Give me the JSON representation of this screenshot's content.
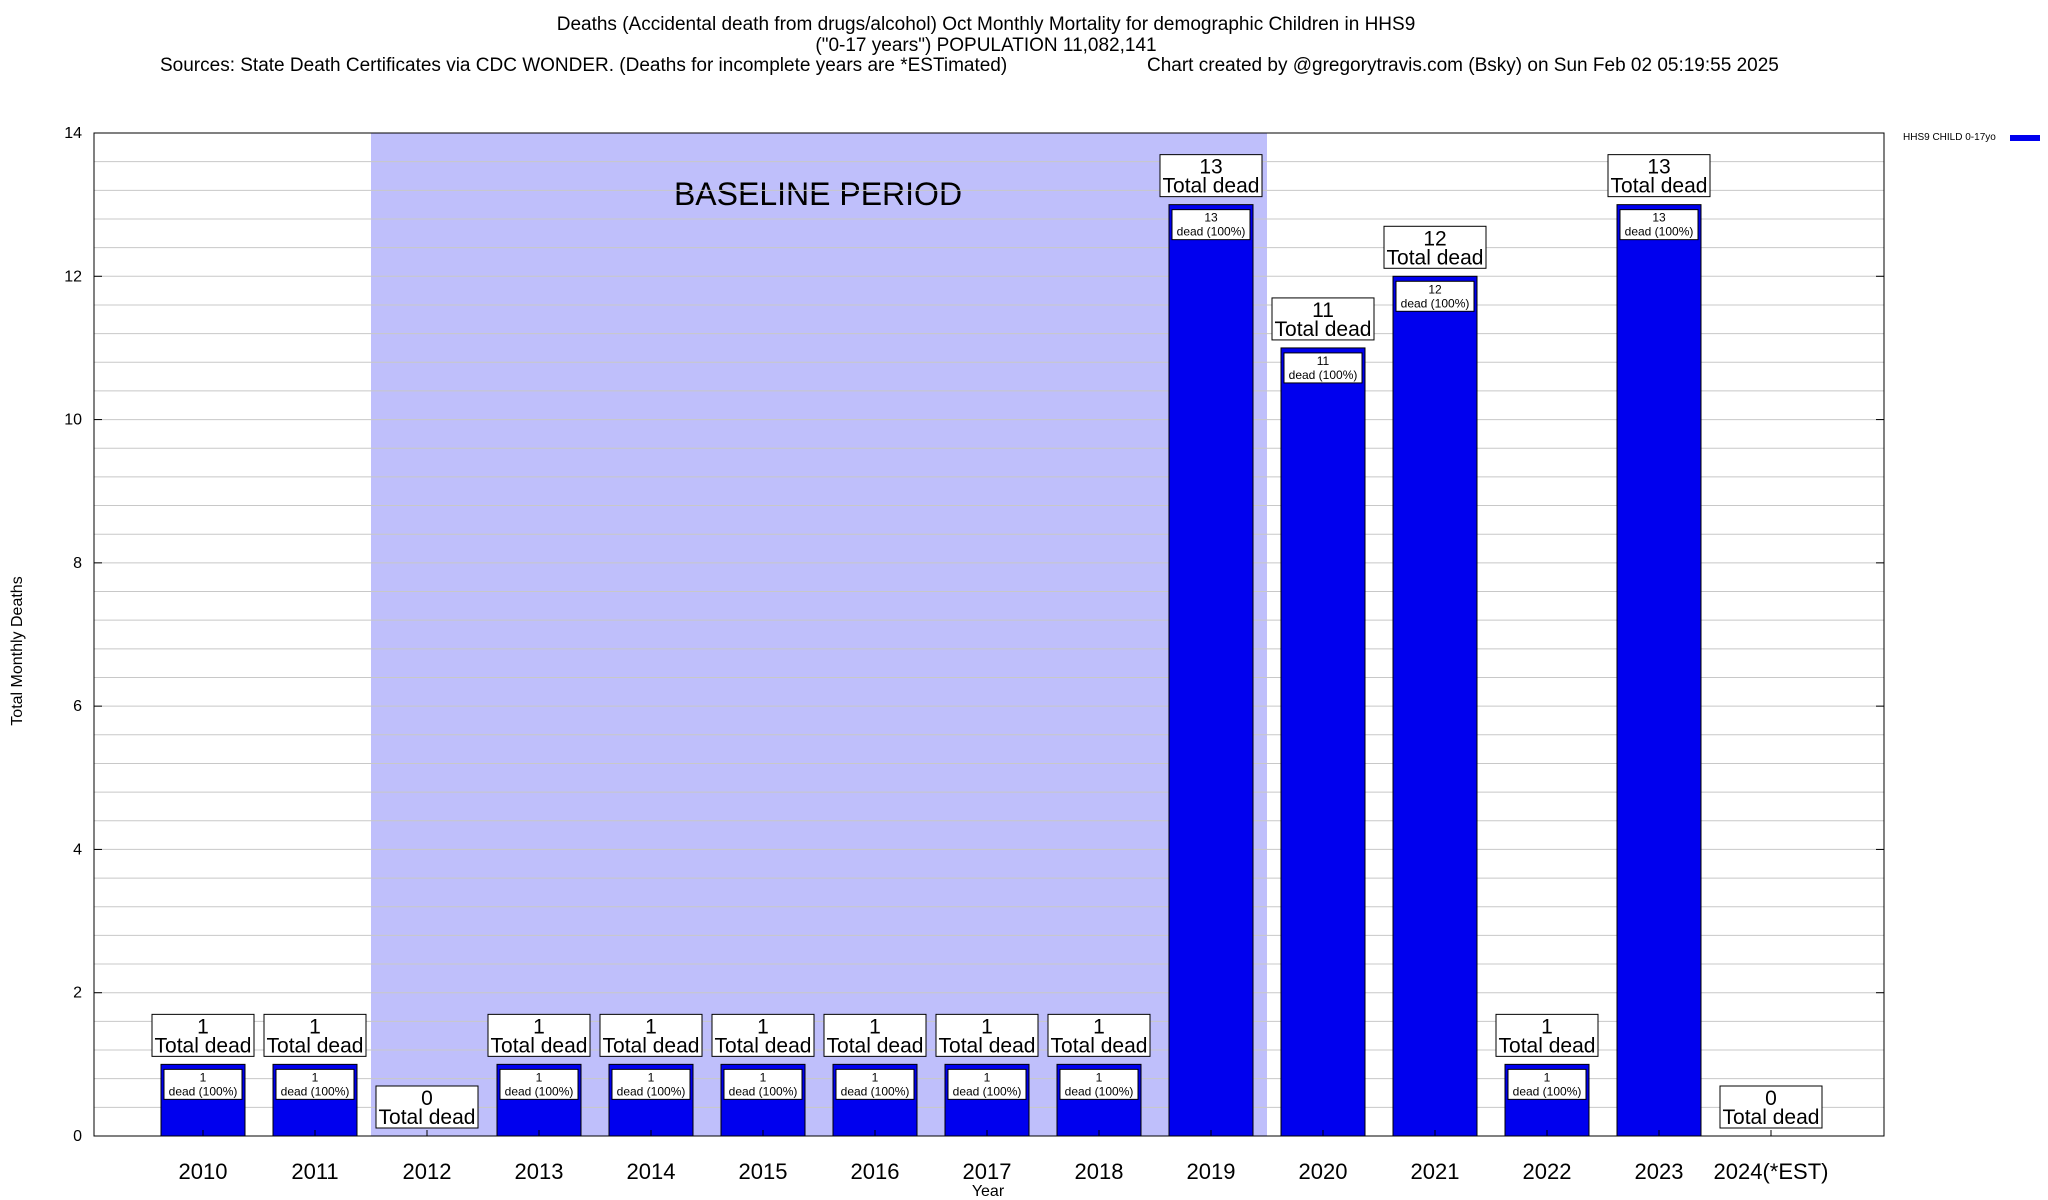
{
  "title_lines": [
    "Deaths (Accidental death from drugs/alcohol) Oct Monthly Mortality for demographic Children in HHS9",
    "(\"0-17 years\") POPULATION 11,082,141"
  ],
  "sources": "Sources: State Death Certificates via CDC WONDER. (Deaths for incomplete years are *ESTimated)",
  "credit": "Chart created by @gregorytravis.com (Bsky) on Sun Feb 02 05:19:55 2025",
  "baseline_label": "BASELINE PERIOD",
  "legend_label": "HHS9 CHILD 0-17yo",
  "total_dead_text": "Total dead",
  "dead_pct_text": "dead (100%)",
  "colors": {
    "bar": "#0000ee",
    "baseline_band": "#bfbffb",
    "grid": "#c8c8c8"
  },
  "chart_data": {
    "type": "bar",
    "title": "Deaths (Accidental death from drugs/alcohol) Oct Monthly Mortality for demographic Children in HHS9",
    "xlabel": "Year",
    "ylabel": "Total Monthly Deaths",
    "ylim": [
      0,
      14
    ],
    "yticks": [
      0,
      2,
      4,
      6,
      8,
      10,
      12,
      14
    ],
    "grid": true,
    "legend_position": "top-right",
    "categories": [
      "2010",
      "2011",
      "2012",
      "2013",
      "2014",
      "2015",
      "2016",
      "2017",
      "2018",
      "2019",
      "2020",
      "2021",
      "2022",
      "2023",
      "2024(*EST)"
    ],
    "series": [
      {
        "name": "HHS9 CHILD 0-17yo",
        "values": [
          1,
          1,
          0,
          1,
          1,
          1,
          1,
          1,
          1,
          13,
          11,
          12,
          1,
          13,
          0
        ]
      }
    ],
    "baseline_period": {
      "from": "2012",
      "to": "2019"
    }
  }
}
